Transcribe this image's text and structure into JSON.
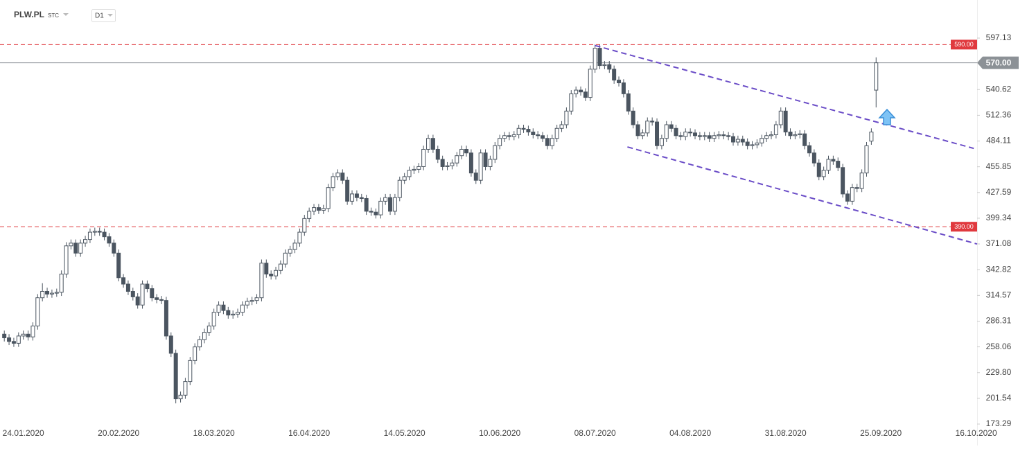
{
  "header": {
    "symbol": "PLW.PL",
    "market": "STC",
    "interval": "D1"
  },
  "chart_data": {
    "type": "candlestick",
    "open": [
      272,
      268,
      264,
      262,
      270,
      272,
      269,
      281,
      312,
      319,
      316,
      317,
      318,
      338,
      369,
      372,
      361,
      372,
      376,
      384,
      385,
      384,
      379,
      372,
      361,
      334,
      327,
      319,
      313,
      304,
      327,
      322,
      312,
      310,
      309,
      270,
      251,
      201,
      205,
      220,
      243,
      258,
      266,
      274,
      281,
      296,
      304,
      298,
      293,
      294,
      296,
      304,
      308,
      309,
      312,
      350,
      338,
      336,
      342,
      349,
      361,
      365,
      372,
      384,
      399,
      407,
      411,
      408,
      410,
      433,
      445,
      449,
      441,
      418,
      426,
      422,
      421,
      407,
      406,
      403,
      418,
      422,
      407,
      422,
      441,
      445,
      452,
      453,
      456,
      475,
      487,
      475,
      464,
      456,
      457,
      460,
      468,
      475,
      471,
      449,
      441,
      471,
      456,
      464,
      479,
      487,
      490,
      489,
      491,
      498,
      497,
      494,
      491,
      490,
      487,
      479,
      487,
      498,
      502,
      517,
      536,
      540,
      538,
      532,
      563,
      586,
      567,
      568,
      563,
      551,
      548,
      536,
      517,
      502,
      490,
      493,
      506,
      505,
      479,
      487,
      502,
      498,
      490,
      489,
      494,
      493,
      490,
      489,
      490,
      487,
      490,
      491,
      490,
      489,
      483,
      486,
      483,
      479,
      480,
      482,
      487,
      490,
      491,
      502,
      517,
      494,
      490,
      491,
      492,
      479,
      471,
      460,
      445,
      452,
      464,
      462,
      455,
      426,
      418,
      433,
      432,
      449,
      484,
      540
    ],
    "high": [
      276,
      272,
      268,
      274,
      276,
      276,
      285,
      316,
      328,
      323,
      321,
      322,
      342,
      373,
      376,
      376,
      376,
      380,
      388,
      389,
      389,
      388,
      383,
      376,
      365,
      338,
      331,
      323,
      317,
      331,
      331,
      326,
      316,
      314,
      313,
      274,
      255,
      209,
      224,
      247,
      262,
      270,
      278,
      285,
      300,
      308,
      308,
      302,
      298,
      300,
      308,
      312,
      313,
      316,
      354,
      354,
      342,
      346,
      353,
      365,
      369,
      376,
      388,
      403,
      411,
      415,
      415,
      414,
      437,
      449,
      453,
      453,
      445,
      430,
      430,
      426,
      425,
      411,
      410,
      422,
      426,
      426,
      426,
      445,
      449,
      456,
      457,
      460,
      479,
      491,
      491,
      479,
      468,
      461,
      464,
      472,
      479,
      479,
      475,
      453,
      475,
      475,
      468,
      483,
      491,
      494,
      494,
      495,
      502,
      502,
      501,
      498,
      495,
      494,
      491,
      491,
      502,
      506,
      521,
      540,
      544,
      544,
      542,
      567,
      590,
      590,
      572,
      572,
      567,
      555,
      552,
      540,
      521,
      506,
      497,
      510,
      510,
      509,
      491,
      506,
      506,
      502,
      494,
      498,
      498,
      497,
      494,
      494,
      494,
      494,
      495,
      495,
      494,
      493,
      490,
      490,
      487,
      484,
      486,
      491,
      494,
      495,
      506,
      521,
      521,
      498,
      495,
      496,
      496,
      483,
      475,
      464,
      456,
      468,
      468,
      466,
      459,
      430,
      437,
      437,
      453,
      483,
      498,
      576
    ],
    "low": [
      264,
      260,
      258,
      258,
      266,
      265,
      265,
      277,
      308,
      312,
      312,
      313,
      314,
      334,
      365,
      357,
      357,
      368,
      372,
      380,
      380,
      375,
      368,
      357,
      330,
      323,
      315,
      309,
      300,
      300,
      318,
      308,
      306,
      305,
      266,
      247,
      196,
      197,
      201,
      216,
      239,
      254,
      262,
      270,
      277,
      292,
      294,
      289,
      289,
      290,
      292,
      300,
      304,
      305,
      308,
      334,
      332,
      332,
      338,
      345,
      357,
      361,
      368,
      380,
      395,
      403,
      404,
      404,
      406,
      429,
      441,
      437,
      414,
      414,
      418,
      417,
      403,
      402,
      399,
      399,
      414,
      403,
      403,
      418,
      437,
      441,
      448,
      449,
      452,
      471,
      471,
      460,
      452,
      452,
      453,
      456,
      464,
      467,
      445,
      437,
      437,
      452,
      452,
      460,
      475,
      483,
      485,
      485,
      487,
      493,
      490,
      487,
      486,
      483,
      475,
      475,
      483,
      494,
      498,
      513,
      532,
      534,
      528,
      528,
      559,
      563,
      563,
      559,
      547,
      544,
      532,
      513,
      498,
      486,
      486,
      489,
      501,
      475,
      475,
      483,
      494,
      486,
      485,
      485,
      489,
      486,
      485,
      485,
      483,
      483,
      486,
      486,
      485,
      479,
      479,
      479,
      475,
      475,
      476,
      478,
      483,
      486,
      487,
      498,
      490,
      486,
      486,
      487,
      475,
      467,
      456,
      441,
      441,
      448,
      458,
      451,
      422,
      414,
      414,
      428,
      428,
      445,
      480,
      521
    ],
    "close": [
      268,
      264,
      262,
      270,
      272,
      269,
      281,
      312,
      319,
      316,
      317,
      318,
      338,
      369,
      372,
      361,
      372,
      376,
      384,
      385,
      384,
      379,
      372,
      361,
      334,
      327,
      319,
      313,
      304,
      327,
      322,
      312,
      310,
      309,
      270,
      251,
      201,
      205,
      220,
      243,
      258,
      266,
      274,
      281,
      296,
      304,
      298,
      293,
      294,
      296,
      304,
      308,
      309,
      312,
      350,
      338,
      336,
      342,
      349,
      361,
      365,
      372,
      384,
      399,
      407,
      411,
      408,
      410,
      433,
      445,
      449,
      441,
      418,
      426,
      422,
      421,
      407,
      406,
      403,
      418,
      422,
      407,
      422,
      441,
      445,
      452,
      453,
      456,
      475,
      487,
      475,
      464,
      456,
      457,
      460,
      468,
      475,
      471,
      449,
      441,
      471,
      456,
      464,
      479,
      487,
      490,
      489,
      491,
      498,
      497,
      494,
      491,
      490,
      487,
      479,
      487,
      498,
      502,
      517,
      536,
      540,
      538,
      532,
      563,
      586,
      567,
      568,
      563,
      551,
      548,
      536,
      517,
      502,
      490,
      493,
      506,
      505,
      479,
      487,
      502,
      498,
      490,
      489,
      494,
      493,
      490,
      489,
      490,
      487,
      490,
      491,
      490,
      489,
      483,
      486,
      483,
      479,
      480,
      482,
      487,
      490,
      491,
      502,
      517,
      494,
      490,
      491,
      492,
      479,
      471,
      460,
      445,
      452,
      464,
      462,
      455,
      426,
      418,
      433,
      432,
      449,
      479,
      494,
      570
    ],
    "xlim": [
      -0.9,
      204.2
    ],
    "xticks": [
      {
        "value": 4,
        "label": "24.01.2020"
      },
      {
        "value": 24,
        "label": "20.02.2020"
      },
      {
        "value": 44,
        "label": "18.03.2020"
      },
      {
        "value": 64,
        "label": "16.04.2020"
      },
      {
        "value": 84,
        "label": "14.05.2020"
      },
      {
        "value": 104,
        "label": "10.06.2020"
      },
      {
        "value": 124,
        "label": "08.07.2020"
      },
      {
        "value": 144,
        "label": "04.08.2020"
      },
      {
        "value": 164,
        "label": "31.08.2020"
      },
      {
        "value": 184,
        "label": "25.09.2020"
      },
      {
        "value": 204,
        "label": "16.10.2020"
      }
    ],
    "ylim": [
      167.2,
      632.89
    ],
    "yticks": [
      597.13,
      540.62,
      512.36,
      484.11,
      455.85,
      427.59,
      399.34,
      371.08,
      342.82,
      314.57,
      286.31,
      258.06,
      {
        "value": 229.8,
        "label": "229.80"
      },
      201.54,
      173.29
    ],
    "levels": [
      {
        "value": 590,
        "label": "590.00",
        "color": "#e0393e",
        "style": "dashed"
      },
      {
        "value": 390,
        "label": "390.00",
        "color": "#e0393e",
        "style": "dashed"
      },
      {
        "value": 570,
        "label": "570.00",
        "color": "#8c9196",
        "style": "solid"
      }
    ],
    "trendlines": [
      {
        "x": [
          124,
          203.5
        ],
        "y": [
          589,
          476
        ],
        "color": "#6a4cc7"
      },
      {
        "x": [
          130.8,
          204.2
        ],
        "y": [
          477.6,
          371
        ],
        "color": "#6a4cc7"
      }
    ],
    "up_color": "#ffffff",
    "down_color": "#4b5560",
    "edge_color": "#4b5560"
  }
}
